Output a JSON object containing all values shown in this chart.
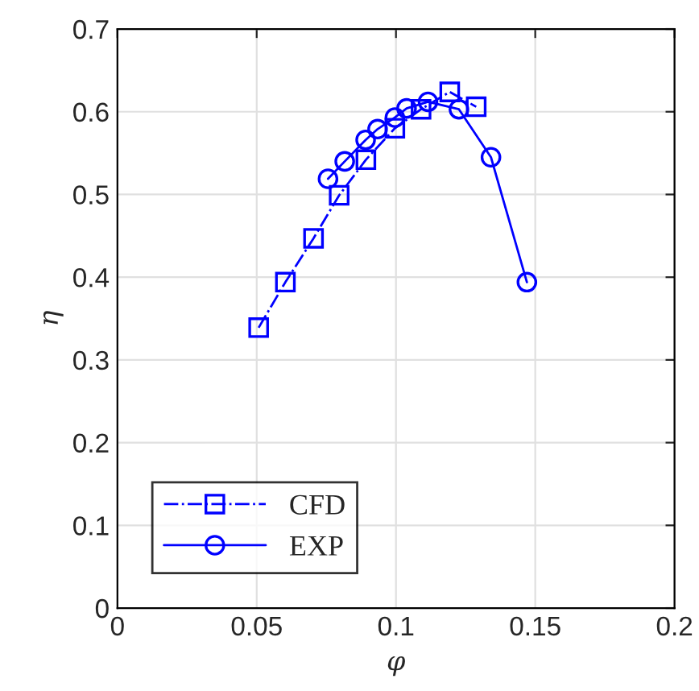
{
  "chart_data": {
    "type": "line",
    "xlabel": "φ",
    "ylabel": "η",
    "xlim": [
      0,
      0.2
    ],
    "xticks": [
      0,
      0.05,
      0.1,
      0.15,
      0.2
    ],
    "ylim": [
      0,
      0.7
    ],
    "yticks": [
      0,
      0.1,
      0.2,
      0.3,
      0.4,
      0.5,
      0.6,
      0.7
    ],
    "grid": true,
    "legend": "bottom left",
    "series": [
      {
        "name": "CFD",
        "color": "#0000ff",
        "marker": "square",
        "line_style": "dashdot",
        "x": [
          0.0507,
          0.0603,
          0.0704,
          0.0796,
          0.0892,
          0.0996,
          0.109,
          0.1193,
          0.1288
        ],
        "values": [
          0.339,
          0.394,
          0.447,
          0.499,
          0.542,
          0.58,
          0.603,
          0.624,
          0.606
        ]
      },
      {
        "name": "EXP",
        "color": "#0000ff",
        "marker": "circle",
        "line_style": "solid",
        "x": [
          0.0756,
          0.0816,
          0.0891,
          0.0934,
          0.0996,
          0.1038,
          0.1115,
          0.1226,
          0.1341,
          0.147
        ],
        "values": [
          0.519,
          0.54,
          0.566,
          0.579,
          0.593,
          0.604,
          0.612,
          0.603,
          0.545,
          0.394
        ]
      }
    ]
  }
}
